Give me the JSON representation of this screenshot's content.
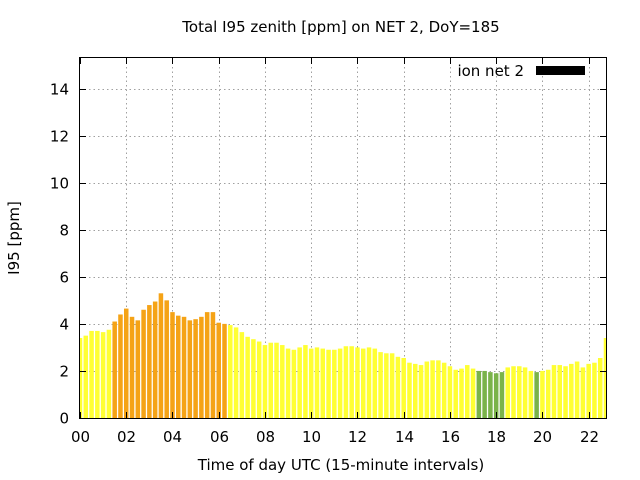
{
  "chart_data": {
    "type": "bar",
    "title": "Total I95 zenith [ppm] on NET 2, DoY=185",
    "xlabel": "Time of day UTC (15-minute intervals)",
    "ylabel": "I95 [ppm]",
    "xlim": [
      0,
      22.75
    ],
    "ylim": [
      0,
      15.3
    ],
    "x_ticks": [
      {
        "value": 0,
        "label": "00"
      },
      {
        "value": 2,
        "label": "02"
      },
      {
        "value": 4,
        "label": "04"
      },
      {
        "value": 6,
        "label": "06"
      },
      {
        "value": 8,
        "label": "08"
      },
      {
        "value": 10,
        "label": "10"
      },
      {
        "value": 12,
        "label": "12"
      },
      {
        "value": 14,
        "label": "14"
      },
      {
        "value": 16,
        "label": "16"
      },
      {
        "value": 18,
        "label": "18"
      },
      {
        "value": 20,
        "label": "20"
      },
      {
        "value": 22,
        "label": "22"
      }
    ],
    "y_ticks": [
      {
        "value": 0,
        "label": "0"
      },
      {
        "value": 2,
        "label": "2"
      },
      {
        "value": 4,
        "label": "4"
      },
      {
        "value": 6,
        "label": "6"
      },
      {
        "value": 8,
        "label": "8"
      },
      {
        "value": 10,
        "label": "10"
      },
      {
        "value": 12,
        "label": "12"
      },
      {
        "value": 14,
        "label": "14"
      }
    ],
    "grid": true,
    "legend": {
      "position": "top-right",
      "label": "ion net 2",
      "color": "#000000"
    },
    "bar_interval_hours": 0.25,
    "colors": {
      "yellow": "#ffff33",
      "orange": "#f5a316",
      "green": "#7ab34a"
    },
    "series": [
      {
        "name": "ion net 2",
        "values": [
          3.4,
          3.5,
          3.7,
          3.7,
          3.65,
          3.75,
          4.1,
          4.4,
          4.65,
          4.3,
          4.15,
          4.6,
          4.8,
          4.95,
          5.3,
          5.0,
          4.5,
          4.35,
          4.3,
          4.15,
          4.2,
          4.3,
          4.5,
          4.5,
          4.05,
          4.0,
          3.95,
          3.85,
          3.65,
          3.45,
          3.35,
          3.25,
          3.1,
          3.2,
          3.2,
          3.1,
          2.95,
          2.9,
          3.0,
          3.1,
          2.95,
          3.0,
          2.95,
          2.9,
          2.9,
          2.95,
          3.05,
          3.05,
          3.0,
          2.95,
          3.0,
          2.95,
          2.8,
          2.75,
          2.75,
          2.6,
          2.55,
          2.35,
          2.3,
          2.25,
          2.4,
          2.45,
          2.45,
          2.35,
          2.2,
          2.05,
          2.1,
          2.25,
          2.1,
          2.0,
          2.0,
          1.95,
          1.9,
          1.95,
          2.15,
          2.2,
          2.2,
          2.15,
          2.0,
          1.95,
          2.0,
          2.05,
          2.25,
          2.25,
          2.2,
          2.3,
          2.4,
          2.15,
          2.3,
          2.35,
          2.55,
          3.4
        ],
        "colors": [
          "yellow",
          "yellow",
          "yellow",
          "yellow",
          "yellow",
          "yellow",
          "orange",
          "orange",
          "orange",
          "orange",
          "orange",
          "orange",
          "orange",
          "orange",
          "orange",
          "orange",
          "orange",
          "orange",
          "orange",
          "orange",
          "orange",
          "orange",
          "orange",
          "orange",
          "orange",
          "orange",
          "yellow",
          "yellow",
          "yellow",
          "yellow",
          "yellow",
          "yellow",
          "yellow",
          "yellow",
          "yellow",
          "yellow",
          "yellow",
          "yellow",
          "yellow",
          "yellow",
          "yellow",
          "yellow",
          "yellow",
          "yellow",
          "yellow",
          "yellow",
          "yellow",
          "yellow",
          "yellow",
          "yellow",
          "yellow",
          "yellow",
          "yellow",
          "yellow",
          "yellow",
          "yellow",
          "yellow",
          "yellow",
          "yellow",
          "yellow",
          "yellow",
          "yellow",
          "yellow",
          "yellow",
          "yellow",
          "yellow",
          "yellow",
          "yellow",
          "yellow",
          "green",
          "green",
          "green",
          "green",
          "green",
          "yellow",
          "yellow",
          "yellow",
          "yellow",
          "yellow",
          "green",
          "yellow",
          "yellow",
          "yellow",
          "yellow",
          "yellow",
          "yellow",
          "yellow",
          "yellow",
          "yellow",
          "yellow",
          "yellow",
          "yellow"
        ]
      }
    ]
  }
}
